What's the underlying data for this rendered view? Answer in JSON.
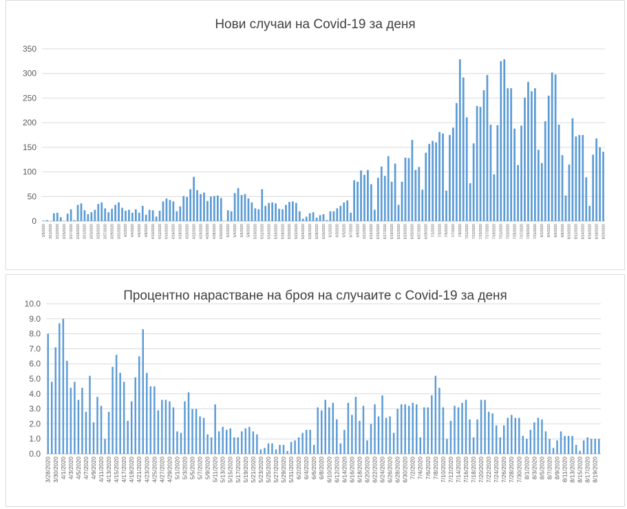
{
  "colors": {
    "bar": "#5b9bd5",
    "grid": "#d9d9d9",
    "axis": "#bfbfbf",
    "text": "#595959",
    "title": "#404040"
  },
  "chart_data": [
    {
      "type": "bar",
      "title": "Нови случаи на Covid-19 за деня",
      "xlabel": "",
      "ylabel": "",
      "ylim": [
        0,
        350
      ],
      "yticks": [
        0,
        50,
        100,
        150,
        200,
        250,
        300,
        350
      ],
      "grid": true,
      "legend": "none",
      "x": [
        "3/9/2020",
        "3/10/2020",
        "3/11/2020",
        "3/12/2020",
        "3/13/2020",
        "3/14/2020",
        "3/15/2020",
        "3/16/2020",
        "3/17/2020",
        "3/18/2020",
        "3/19/2020",
        "3/20/2020",
        "3/21/2020",
        "3/22/2020",
        "3/23/2020",
        "3/24/2020",
        "3/25/2020",
        "3/26/2020",
        "3/27/2020",
        "3/28/2020",
        "3/29/2020",
        "3/30/2020",
        "3/31/2020",
        "4/1/2020",
        "4/2/2020",
        "4/3/2020",
        "4/4/2020",
        "4/5/2020",
        "4/6/2020",
        "4/7/2020",
        "4/8/2020",
        "4/9/2020",
        "4/10/2020",
        "4/11/2020",
        "4/12/2020",
        "4/13/2020",
        "4/14/2020",
        "4/15/2020",
        "4/16/2020",
        "4/17/2020",
        "4/18/2020",
        "4/19/2020",
        "4/20/2020",
        "4/21/2020",
        "4/22/2020",
        "4/23/2020",
        "4/24/2020",
        "4/25/2020",
        "4/26/2020",
        "4/27/2020",
        "4/28/2020",
        "4/29/2020",
        "4/30/2020",
        "5/1/2020",
        "5/2/2020",
        "5/3/2020",
        "5/4/2020",
        "5/5/2020",
        "5/6/2020",
        "5/7/2020",
        "5/8/2020",
        "5/9/2020",
        "5/10/2020",
        "5/11/2020",
        "5/12/2020",
        "5/13/2020",
        "5/14/2020",
        "5/15/2020",
        "5/16/2020",
        "5/17/2020",
        "5/18/2020",
        "5/19/2020",
        "5/20/2020",
        "5/21/2020",
        "5/22/2020",
        "5/23/2020",
        "5/24/2020",
        "5/25/2020",
        "5/26/2020",
        "5/27/2020",
        "5/28/2020",
        "5/29/2020",
        "5/30/2020",
        "5/31/2020",
        "6/1/2020",
        "6/2/2020",
        "6/3/2020",
        "6/4/2020",
        "6/5/2020",
        "6/6/2020",
        "6/7/2020",
        "6/8/2020",
        "6/9/2020",
        "6/10/2020",
        "6/11/2020",
        "6/12/2020",
        "6/13/2020",
        "6/14/2020",
        "6/15/2020",
        "6/16/2020",
        "6/17/2020",
        "6/18/2020",
        "6/19/2020",
        "6/20/2020",
        "6/21/2020",
        "6/22/2020",
        "6/23/2020",
        "6/24/2020",
        "6/25/2020",
        "6/26/2020",
        "6/27/2020",
        "6/28/2020",
        "6/29/2020",
        "6/30/2020",
        "7/1/2020",
        "7/2/2020",
        "7/3/2020",
        "7/4/2020",
        "7/5/2020",
        "7/6/2020",
        "7/7/2020",
        "7/8/2020",
        "7/9/2020",
        "7/10/2020",
        "7/11/2020",
        "7/12/2020",
        "7/13/2020",
        "7/14/2020",
        "7/15/2020",
        "7/16/2020",
        "7/17/2020",
        "7/18/2020",
        "7/19/2020",
        "7/20/2020",
        "7/21/2020",
        "7/22/2020",
        "7/23/2020",
        "7/24/2020",
        "7/25/2020",
        "7/26/2020",
        "7/27/2020",
        "7/28/2020",
        "7/29/2020",
        "7/30/2020",
        "7/31/2020",
        "8/1/2020",
        "8/2/2020",
        "8/3/2020",
        "8/4/2020",
        "8/5/2020",
        "8/6/2020",
        "8/7/2020",
        "8/8/2020",
        "8/9/2020",
        "8/10/2020",
        "8/11/2020",
        "8/12/2020",
        "8/13/2020",
        "8/14/2020",
        "8/15/2020",
        "8/16/2020",
        "8/17/2020",
        "8/18/2020",
        "8/19/2020",
        "8/20/2020"
      ],
      "xtick_labels_every": 2,
      "values": [
        1,
        2,
        0,
        16,
        17,
        8,
        0,
        15,
        24,
        2,
        33,
        36,
        22,
        14,
        18,
        23,
        35,
        38,
        26,
        18,
        25,
        33,
        38,
        27,
        21,
        23,
        17,
        24,
        17,
        31,
        13,
        23,
        22,
        9,
        21,
        40,
        46,
        43,
        40,
        20,
        30,
        51,
        49,
        65,
        90,
        63,
        55,
        58,
        41,
        50,
        51,
        52,
        47,
        0,
        22,
        20,
        57,
        67,
        53,
        55,
        46,
        38,
        26,
        24,
        65,
        31,
        37,
        38,
        36,
        25,
        24,
        33,
        39,
        40,
        37,
        20,
        5,
        9,
        16,
        18,
        7,
        12,
        14,
        2,
        20,
        20,
        26,
        31,
        38,
        42,
        17,
        83,
        80,
        103,
        94,
        104,
        75,
        23,
        88,
        111,
        92,
        132,
        80,
        117,
        33,
        80,
        129,
        128,
        165,
        104,
        110,
        64,
        139,
        157,
        163,
        160,
        181,
        178,
        62,
        175,
        190,
        240,
        329,
        292,
        211,
        77,
        158,
        234,
        232,
        266,
        297,
        196,
        95,
        195,
        325,
        329,
        270,
        270,
        188,
        114,
        194,
        251,
        283,
        264,
        270,
        145,
        118,
        203,
        255,
        302,
        298,
        196,
        134,
        52,
        115,
        209,
        172,
        175,
        175,
        89,
        31,
        135,
        168,
        150,
        141
      ]
    },
    {
      "type": "bar",
      "title": "Процентно нарастване на броя на случаите с Covid-19 за деня",
      "xlabel": "",
      "ylabel": "",
      "ylim": [
        0,
        10
      ],
      "yticks": [
        "0.0",
        "1.0",
        "2.0",
        "3.0",
        "4.0",
        "5.0",
        "6.0",
        "7.0",
        "8.0",
        "9.0",
        "10.0"
      ],
      "grid": true,
      "legend": "none",
      "x": [
        "3/28/2020",
        "3/29/2020",
        "3/30/2020",
        "3/31/2020",
        "4/1/2020",
        "4/2/2020",
        "4/3/2020",
        "4/4/2020",
        "4/5/2020",
        "4/6/2020",
        "4/7/2020",
        "4/8/2020",
        "4/9/2020",
        "4/10/2020",
        "4/11/2020",
        "4/12/2020",
        "4/13/2020",
        "4/14/2020",
        "4/15/2020",
        "4/16/2020",
        "4/17/2020",
        "4/18/2020",
        "4/19/2020",
        "4/20/2020",
        "4/21/2020",
        "4/22/2020",
        "4/23/2020",
        "4/24/2020",
        "4/25/2020",
        "4/26/2020",
        "4/27/2020",
        "4/28/2020",
        "4/29/2020",
        "4/30/2020",
        "5/1/2020",
        "5/2/2020",
        "5/3/2020",
        "5/4/2020",
        "5/5/2020",
        "5/6/2020",
        "5/7/2020",
        "5/8/2020",
        "5/9/2020",
        "5/10/2020",
        "5/11/2020",
        "5/12/2020",
        "5/13/2020",
        "5/14/2020",
        "5/15/2020",
        "5/16/2020",
        "5/17/2020",
        "5/18/2020",
        "5/19/2020",
        "5/20/2020",
        "5/21/2020",
        "5/22/2020",
        "5/23/2020",
        "5/24/2020",
        "5/25/2020",
        "5/26/2020",
        "5/27/2020",
        "5/28/2020",
        "5/29/2020",
        "5/30/2020",
        "5/31/2020",
        "6/1/2020",
        "6/2/2020",
        "6/3/2020",
        "6/4/2020",
        "6/5/2020",
        "6/6/2020",
        "6/7/2020",
        "6/8/2020",
        "6/9/2020",
        "6/10/2020",
        "6/11/2020",
        "6/12/2020",
        "6/13/2020",
        "6/14/2020",
        "6/15/2020",
        "6/16/2020",
        "6/17/2020",
        "6/18/2020",
        "6/19/2020",
        "6/20/2020",
        "6/21/2020",
        "6/22/2020",
        "6/23/2020",
        "6/24/2020",
        "6/25/2020",
        "6/26/2020",
        "6/27/2020",
        "6/28/2020",
        "6/29/2020",
        "6/30/2020",
        "7/1/2020",
        "7/2/2020",
        "7/3/2020",
        "7/4/2020",
        "7/5/2020",
        "7/6/2020",
        "7/7/2020",
        "7/8/2020",
        "7/9/2020",
        "7/10/2020",
        "7/11/2020",
        "7/12/2020",
        "7/13/2020",
        "7/14/2020",
        "7/15/2020",
        "7/16/2020",
        "7/17/2020",
        "7/18/2020",
        "7/19/2020",
        "7/20/2020",
        "7/21/2020",
        "7/22/2020",
        "7/23/2020",
        "7/24/2020",
        "7/25/2020",
        "7/26/2020",
        "7/27/2020",
        "7/28/2020",
        "7/29/2020",
        "7/30/2020",
        "7/31/2020",
        "8/1/2020",
        "8/2/2020",
        "8/3/2020",
        "8/4/2020",
        "8/5/2020",
        "8/6/2020",
        "8/7/2020",
        "8/8/2020",
        "8/9/2020",
        "8/10/2020",
        "8/11/2020",
        "8/12/2020",
        "8/13/2020",
        "8/14/2020",
        "8/15/2020",
        "8/16/2020",
        "8/17/2020",
        "8/18/2020",
        "8/19/2020",
        "8/20/2020"
      ],
      "xtick_labels_every": 2,
      "values": [
        8.0,
        4.8,
        7.1,
        8.7,
        9.0,
        6.2,
        4.4,
        4.8,
        3.6,
        4.4,
        2.8,
        5.2,
        2.1,
        3.8,
        3.2,
        1.0,
        2.8,
        5.8,
        6.6,
        5.4,
        4.8,
        2.2,
        3.5,
        5.1,
        6.5,
        8.3,
        5.4,
        4.5,
        4.5,
        2.9,
        3.6,
        3.6,
        3.5,
        3.1,
        1.5,
        1.4,
        3.5,
        4.1,
        3.0,
        3.0,
        2.5,
        2.4,
        1.3,
        1.1,
        3.3,
        1.5,
        1.8,
        1.6,
        1.7,
        1.1,
        1.1,
        1.5,
        1.7,
        1.8,
        1.5,
        1.3,
        0.3,
        0.4,
        0.7,
        0.7,
        0.3,
        0.6,
        0.6,
        0.2,
        0.8,
        0.9,
        1.1,
        1.4,
        1.6,
        1.6,
        0.6,
        3.1,
        2.9,
        3.6,
        3.1,
        3.4,
        2.3,
        0.7,
        1.6,
        3.4,
        2.6,
        3.8,
        2.2,
        3.2,
        0.9,
        2.0,
        3.3,
        2.5,
        3.9,
        2.4,
        2.5,
        1.4,
        3.0,
        3.3,
        3.3,
        3.2,
        3.4,
        3.3,
        1.1,
        3.1,
        3.1,
        3.9,
        5.2,
        4.4,
        3.1,
        1.0,
        2.2,
        3.2,
        3.1,
        3.4,
        3.6,
        2.3,
        1.1,
        2.3,
        3.6,
        3.6,
        2.8,
        2.7,
        1.9,
        1.1,
        1.9,
        2.4,
        2.6,
        2.4,
        2.4,
        1.2,
        1.0,
        1.6,
        2.1,
        2.4,
        2.3,
        1.5,
        1.0,
        0.4,
        0.9,
        1.5,
        1.2,
        1.2,
        1.2,
        0.6,
        0.2,
        0.9,
        1.1,
        1.0,
        1.0,
        1.0
      ]
    }
  ]
}
